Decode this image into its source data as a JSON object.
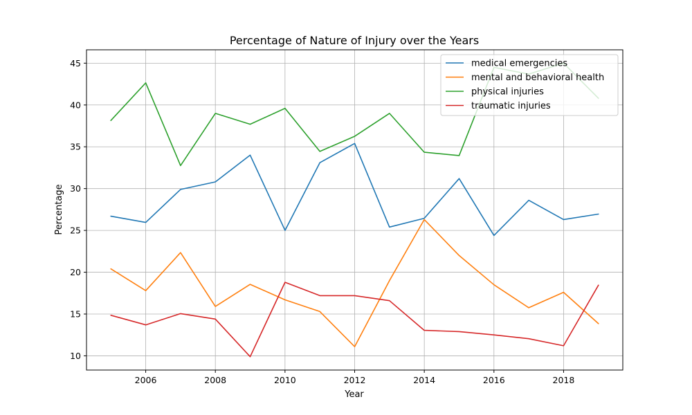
{
  "chart_data": {
    "type": "line",
    "title": "Percentage of Nature of Injury over the Years",
    "xlabel": "Year",
    "ylabel": "Percentage",
    "x": [
      2005,
      2006,
      2007,
      2008,
      2009,
      2010,
      2011,
      2012,
      2013,
      2014,
      2015,
      2016,
      2017,
      2018,
      2019
    ],
    "xlim": [
      2004.3,
      2019.7
    ],
    "ylim": [
      8.3,
      46.6
    ],
    "x_ticks": [
      2006,
      2008,
      2010,
      2012,
      2014,
      2016,
      2018
    ],
    "y_ticks": [
      10,
      15,
      20,
      25,
      30,
      35,
      40,
      45
    ],
    "grid": true,
    "legend_position": "top-right",
    "series": [
      {
        "name": "medical emergencies",
        "color": "#1f77b4",
        "values": [
          26.7,
          25.95,
          29.9,
          30.8,
          34.0,
          25.0,
          33.1,
          35.4,
          25.4,
          26.45,
          31.2,
          24.4,
          28.6,
          26.3,
          26.95
        ]
      },
      {
        "name": "mental and behavioral health",
        "color": "#ff7f0e",
        "values": [
          20.4,
          17.8,
          22.35,
          15.9,
          18.55,
          16.7,
          15.3,
          11.1,
          19.0,
          26.3,
          22.0,
          18.5,
          15.75,
          17.6,
          13.85
        ]
      },
      {
        "name": "physical injuries",
        "color": "#2ca02c",
        "values": [
          38.15,
          42.65,
          32.75,
          39.0,
          37.7,
          39.6,
          34.45,
          36.25,
          39.0,
          34.35,
          33.95,
          44.5,
          43.7,
          45.0,
          40.8
        ]
      },
      {
        "name": "traumatic injuries",
        "color": "#d62728",
        "values": [
          14.85,
          13.7,
          15.05,
          14.4,
          9.9,
          18.8,
          17.2,
          17.2,
          16.6,
          13.05,
          12.9,
          12.5,
          12.05,
          11.2,
          18.45
        ]
      }
    ]
  }
}
